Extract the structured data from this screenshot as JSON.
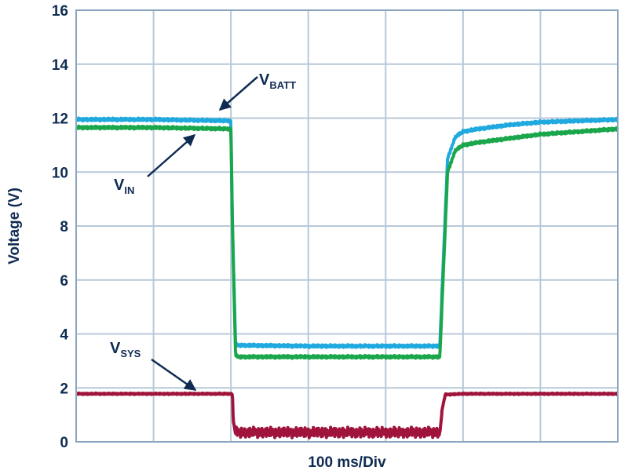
{
  "chart_data": {
    "type": "line",
    "title": "",
    "xlabel": "100 ms/Div",
    "ylabel": "Voltage (V)",
    "x_unit_per_div": "100 ms",
    "x_divisions": 7,
    "xlim": [
      0,
      700
    ],
    "ylim": [
      0,
      16
    ],
    "y_ticks": [
      "0",
      "2",
      "4",
      "6",
      "8",
      "10",
      "12",
      "14",
      "16"
    ],
    "grid": true,
    "series": [
      {
        "name": "VBATT",
        "color": "#1fa9de",
        "x": [
          0,
          100,
          200,
          202,
          206,
          210,
          300,
          400,
          460,
          470,
          480,
          490,
          500,
          520,
          560,
          600,
          650,
          700
        ],
        "y": [
          11.95,
          11.95,
          11.9,
          8.0,
          3.6,
          3.58,
          3.55,
          3.55,
          3.55,
          3.55,
          10.5,
          11.3,
          11.5,
          11.6,
          11.75,
          11.85,
          11.9,
          11.95
        ]
      },
      {
        "name": "VIN",
        "color": "#1aa64a",
        "x": [
          0,
          100,
          200,
          202,
          206,
          210,
          300,
          400,
          460,
          470,
          480,
          490,
          500,
          520,
          560,
          600,
          650,
          700
        ],
        "y": [
          11.65,
          11.65,
          11.6,
          8.0,
          3.2,
          3.15,
          3.15,
          3.15,
          3.15,
          3.15,
          10.0,
          10.8,
          11.0,
          11.1,
          11.25,
          11.4,
          11.5,
          11.6
        ]
      },
      {
        "name": "VSYS",
        "color": "#a0143c",
        "x": [
          0,
          100,
          202,
          203,
          206,
          300,
          400,
          470,
          473,
          477,
          500,
          600,
          700
        ],
        "y": [
          1.78,
          1.78,
          1.78,
          0.8,
          0.3,
          0.3,
          0.3,
          0.3,
          1.2,
          1.75,
          1.78,
          1.78,
          1.78
        ]
      }
    ],
    "annotations": [
      {
        "main": "V",
        "sub": "BATT",
        "target_series": "VBATT"
      },
      {
        "main": "V",
        "sub": "IN",
        "target_series": "VIN"
      },
      {
        "main": "V",
        "sub": "SYS",
        "target_series": "VSYS"
      }
    ]
  }
}
